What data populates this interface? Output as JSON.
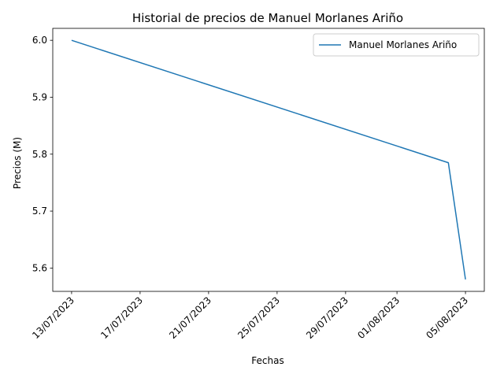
{
  "chart_data": {
    "type": "line",
    "title": "Historial de precios de Manuel Morlanes Ariño",
    "xlabel": "Fechas",
    "ylabel": "Precios (M)",
    "x_tick_labels": [
      "13/07/2023",
      "17/07/2023",
      "21/07/2023",
      "25/07/2023",
      "29/07/2023",
      "01/08/2023",
      "05/08/2023"
    ],
    "x_tick_dates": [
      "2023-07-13",
      "2023-07-17",
      "2023-07-21",
      "2023-07-25",
      "2023-07-29",
      "2023-08-01",
      "2023-08-05"
    ],
    "y_ticks": [
      5.6,
      5.7,
      5.8,
      5.9,
      6.0
    ],
    "y_tick_labels": [
      "5.6",
      "5.7",
      "5.8",
      "5.9",
      "6.0"
    ],
    "xlim": [
      "2023-07-11 21:36",
      "2023-08-06 02:24"
    ],
    "ylim": [
      5.559,
      6.021
    ],
    "grid": false,
    "legend_position": "top-right",
    "series": [
      {
        "name": "Manuel Morlanes Ariño",
        "color": "#1f77b4",
        "points": [
          {
            "x": "2023-07-13",
            "y": 6.0
          },
          {
            "x": "2023-08-04",
            "y": 5.785
          },
          {
            "x": "2023-08-05",
            "y": 5.58
          }
        ]
      }
    ]
  }
}
